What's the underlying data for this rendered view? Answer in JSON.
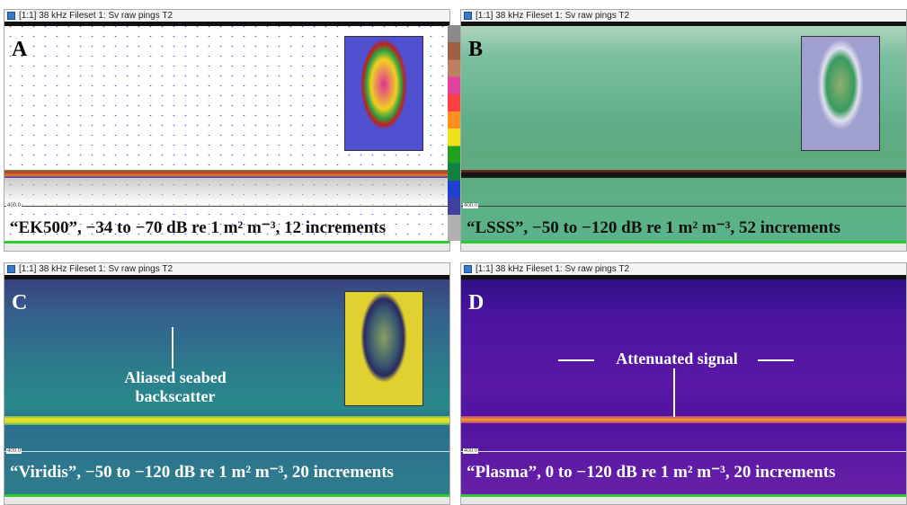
{
  "panels": [
    {
      "title": "[1:1] 38 kHz Fileset 1: Sv raw pings T2",
      "letter": "A",
      "scale_label": "400.0",
      "caption": "“EK500”, −34 to −70 dB re 1 m² m⁻³, 12 increments"
    },
    {
      "title": "[1:1] 38 kHz Fileset 1: Sv raw pings T2",
      "letter": "B",
      "scale_label": "400.0",
      "caption": "“LSSS”, −50 to −120 dB re 1 m² m⁻³, 52 increments"
    },
    {
      "title": "[1:1] 38 kHz Fileset 1: Sv raw pings T2",
      "letter": "C",
      "scale_label": "400.0",
      "caption": "“Viridis”, −50 to −120 dB re 1 m² m⁻³, 20 increments",
      "annotation": "Aliased seabed backscatter"
    },
    {
      "title": "[1:1] 38 kHz Fileset 1: Sv raw pings T2",
      "letter": "D",
      "scale_label": "400.0",
      "caption": "“Plasma”, 0 to −120 dB re 1 m² m⁻³, 20 increments",
      "annotation": "Attenuated signal"
    }
  ]
}
